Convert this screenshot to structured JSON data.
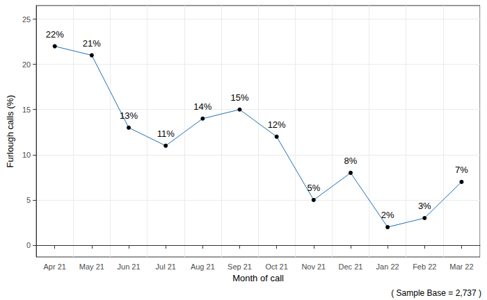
{
  "chart_data": {
    "type": "line",
    "x_label": "Month of call",
    "y_label": "Furlough calls (%)",
    "annotations": [
      "( Sample Base = 2,737 )"
    ],
    "categories": [
      "Apr 21",
      "May 21",
      "Jun 21",
      "Jul 21",
      "Aug 21",
      "Sep 21",
      "Oct 21",
      "Nov 21",
      "Dec 21",
      "Jan 22",
      "Feb 22",
      "Mar 22"
    ],
    "values": [
      22,
      21,
      13,
      11,
      14,
      15,
      12,
      5,
      8,
      2,
      3,
      7
    ],
    "value_labels": [
      "22%",
      "21%",
      "13%",
      "11%",
      "14%",
      "15%",
      "12%",
      "5%",
      "8%",
      "2%",
      "3%",
      "7%"
    ],
    "color": "#1f6fb4",
    "marker": "circle",
    "ylim": [
      -1.3,
      26.5
    ],
    "yticks": [
      0,
      5,
      10,
      15,
      20,
      25
    ],
    "grid": true,
    "data_labels": true
  }
}
